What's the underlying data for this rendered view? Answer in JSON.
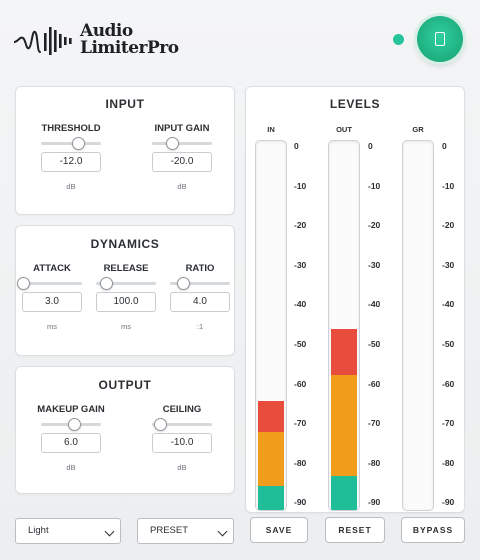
{
  "app": {
    "title_line1": "Audio",
    "title_line2": "LimiterPro",
    "status_color": "#27c39a",
    "power_icon": "power-icon"
  },
  "input": {
    "title": "INPUT",
    "controls": [
      {
        "label": "THRESHOLD",
        "value": "-12.0",
        "unit": "dB",
        "level": 0.62
      },
      {
        "label": "INPUT GAIN",
        "value": "-20.0",
        "unit": "dB",
        "level": 0.33
      }
    ]
  },
  "dynamics": {
    "title": "DYNAMICS",
    "controls": [
      {
        "label": "ATTACK",
        "value": "3.0",
        "unit": "ms",
        "level": 0.02
      },
      {
        "label": "RELEASE",
        "value": "100.0",
        "unit": "ms",
        "level": 0.16
      },
      {
        "label": "RATIO",
        "value": "4.0",
        "unit": ":1",
        "level": 0.22
      }
    ]
  },
  "output": {
    "title": "OUTPUT",
    "controls": [
      {
        "label": "MAKEUP GAIN",
        "value": "6.0",
        "unit": "dB",
        "level": 0.55
      },
      {
        "label": "CEILING",
        "value": "-10.0",
        "unit": "dB",
        "level": 0.14
      }
    ]
  },
  "levels": {
    "title": "LEVELS",
    "scale": [
      "0",
      "-10",
      "-20",
      "-30",
      "-40",
      "-50",
      "-60",
      "-70",
      "-80",
      "-90"
    ],
    "meters": [
      {
        "label": "IN",
        "level_db": -63,
        "segments": [
          {
            "color": "green",
            "from": -90,
            "to": -84
          },
          {
            "color": "orange",
            "from": -84,
            "to": -70.5
          },
          {
            "color": "red",
            "from": -70.5,
            "to": -63
          }
        ]
      },
      {
        "label": "OUT",
        "level_db": -45,
        "segments": [
          {
            "color": "green",
            "from": -90,
            "to": -81.5
          },
          {
            "color": "orange",
            "from": -81.5,
            "to": -56.5
          },
          {
            "color": "red",
            "from": -56.5,
            "to": -45
          }
        ]
      },
      {
        "label": "GR",
        "level_db": -90,
        "segments": []
      }
    ]
  },
  "footer": {
    "theme_value": "Light",
    "preset_value": "PRESET",
    "save_label": "SAVE",
    "reset_label": "RESET",
    "bypass_label": "BYPASS"
  }
}
